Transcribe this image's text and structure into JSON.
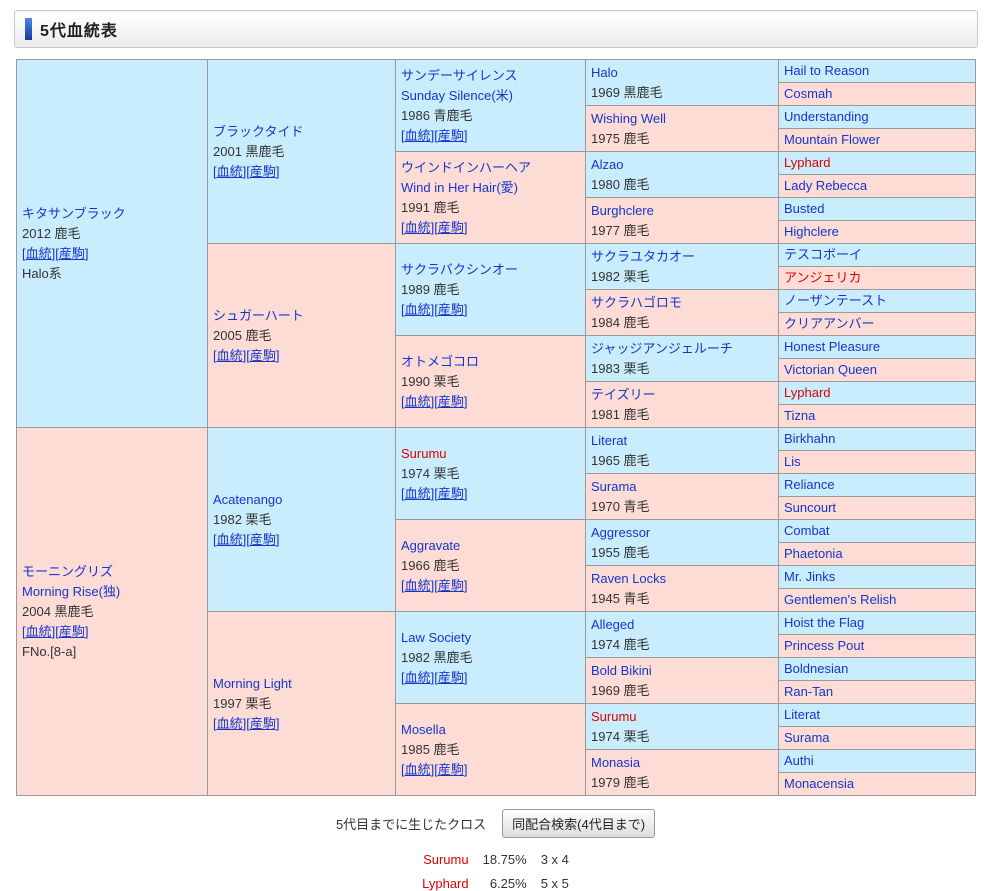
{
  "header": {
    "title": "5代血統表"
  },
  "links": {
    "blood": "血統",
    "offspring": "産駒"
  },
  "pedigree": {
    "gen1": [
      {
        "name": "キタサンブラック",
        "year_coat": "2012 鹿毛",
        "links": true,
        "extra": "Halo系",
        "sex": "m"
      },
      {
        "name": "モーニングリズ",
        "name_en": "Morning Rise(独)",
        "year_coat": "2004 黒鹿毛",
        "links": true,
        "extra": "FNo.[8-a]",
        "sex": "f"
      }
    ],
    "gen2": [
      {
        "name": "ブラックタイド",
        "year_coat": "2001 黒鹿毛",
        "links": true,
        "sex": "m"
      },
      {
        "name": "シュガーハート",
        "year_coat": "2005 鹿毛",
        "links": true,
        "sex": "f"
      },
      {
        "name": "Acatenango",
        "year_coat": "1982 栗毛",
        "links": true,
        "sex": "m"
      },
      {
        "name": "Morning Light",
        "year_coat": "1997 栗毛",
        "links": true,
        "sex": "f"
      }
    ],
    "gen3": [
      {
        "name": "サンデーサイレンス",
        "name_en": "Sunday Silence(米)",
        "year_coat": "1986 青鹿毛",
        "links": true,
        "sex": "m"
      },
      {
        "name": "ウインドインハーヘア",
        "name_en": "Wind in Her Hair(愛)",
        "year_coat": "1991 鹿毛",
        "links": true,
        "sex": "f"
      },
      {
        "name": "サクラバクシンオー",
        "year_coat": "1989 鹿毛",
        "links": true,
        "sex": "m"
      },
      {
        "name": "オトメゴコロ",
        "year_coat": "1990 栗毛",
        "links": true,
        "sex": "f"
      },
      {
        "name": "Surumu",
        "year_coat": "1974 栗毛",
        "links": true,
        "sex": "m",
        "red": true
      },
      {
        "name": "Aggravate",
        "year_coat": "1966 鹿毛",
        "links": true,
        "sex": "f"
      },
      {
        "name": "Law Society",
        "year_coat": "1982 黒鹿毛",
        "links": true,
        "sex": "m"
      },
      {
        "name": "Mosella",
        "year_coat": "1985 鹿毛",
        "links": true,
        "sex": "f"
      }
    ],
    "gen4": [
      {
        "name": "Halo",
        "year_coat": "1969 黒鹿毛",
        "sex": "m"
      },
      {
        "name": "Wishing Well",
        "year_coat": "1975 鹿毛",
        "sex": "f"
      },
      {
        "name": "Alzao",
        "year_coat": "1980 鹿毛",
        "sex": "m"
      },
      {
        "name": "Burghclere",
        "year_coat": "1977 鹿毛",
        "sex": "f"
      },
      {
        "name": "サクラユタカオー",
        "year_coat": "1982 栗毛",
        "sex": "m"
      },
      {
        "name": "サクラハゴロモ",
        "year_coat": "1984 鹿毛",
        "sex": "f"
      },
      {
        "name": "ジャッジアンジェルーチ",
        "year_coat": "1983 栗毛",
        "sex": "m"
      },
      {
        "name": "テイズリー",
        "year_coat": "1981 鹿毛",
        "sex": "f"
      },
      {
        "name": "Literat",
        "year_coat": "1965 鹿毛",
        "sex": "m"
      },
      {
        "name": "Surama",
        "year_coat": "1970 青毛",
        "sex": "f"
      },
      {
        "name": "Aggressor",
        "year_coat": "1955 鹿毛",
        "sex": "m"
      },
      {
        "name": "Raven Locks",
        "year_coat": "1945 青毛",
        "sex": "f"
      },
      {
        "name": "Alleged",
        "year_coat": "1974 鹿毛",
        "sex": "m"
      },
      {
        "name": "Bold Bikini",
        "year_coat": "1969 鹿毛",
        "sex": "f"
      },
      {
        "name": "Surumu",
        "year_coat": "1974 栗毛",
        "sex": "m",
        "red": true
      },
      {
        "name": "Monasia",
        "year_coat": "1979 鹿毛",
        "sex": "f"
      }
    ],
    "gen5": [
      {
        "name": "Hail to Reason",
        "sex": "m"
      },
      {
        "name": "Cosmah",
        "sex": "f"
      },
      {
        "name": "Understanding",
        "sex": "m"
      },
      {
        "name": "Mountain Flower",
        "sex": "f"
      },
      {
        "name": "Lyphard",
        "sex": "m",
        "red": true
      },
      {
        "name": "Lady Rebecca",
        "sex": "f"
      },
      {
        "name": "Busted",
        "sex": "m"
      },
      {
        "name": "Highclere",
        "sex": "f"
      },
      {
        "name": "テスコボーイ",
        "sex": "m"
      },
      {
        "name": "アンジェリカ",
        "sex": "f",
        "red": true
      },
      {
        "name": "ノーザンテースト",
        "sex": "m"
      },
      {
        "name": "クリアアンバー",
        "sex": "f"
      },
      {
        "name": "Honest Pleasure",
        "sex": "m"
      },
      {
        "name": "Victorian Queen",
        "sex": "f"
      },
      {
        "name": "Lyphard",
        "sex": "m",
        "red": true
      },
      {
        "name": "Tizna",
        "sex": "f"
      },
      {
        "name": "Birkhahn",
        "sex": "m"
      },
      {
        "name": "Lis",
        "sex": "f"
      },
      {
        "name": "Reliance",
        "sex": "m"
      },
      {
        "name": "Suncourt",
        "sex": "f"
      },
      {
        "name": "Combat",
        "sex": "m"
      },
      {
        "name": "Phaetonia",
        "sex": "f"
      },
      {
        "name": "Mr. Jinks",
        "sex": "m"
      },
      {
        "name": "Gentlemen's Relish",
        "sex": "f"
      },
      {
        "name": "Hoist the Flag",
        "sex": "m"
      },
      {
        "name": "Princess Pout",
        "sex": "f"
      },
      {
        "name": "Boldnesian",
        "sex": "m"
      },
      {
        "name": "Ran-Tan",
        "sex": "f"
      },
      {
        "name": "Literat",
        "sex": "m"
      },
      {
        "name": "Surama",
        "sex": "f"
      },
      {
        "name": "Authi",
        "sex": "m"
      },
      {
        "name": "Monacensia",
        "sex": "f"
      }
    ]
  },
  "footer": {
    "cross_label": "5代目までに生じたクロス",
    "search_button_label": "同配合検索(4代目まで)",
    "crosses": [
      {
        "name": "Surumu",
        "percent": "18.75%",
        "cross": "3 x 4"
      },
      {
        "name": "Lyphard",
        "percent": "6.25%",
        "cross": "5 x 5"
      }
    ]
  },
  "colors": {
    "male_bg": "#c9edfc",
    "female_bg": "#fddcd6",
    "link_blue": "#1535cc",
    "cross_red": "#dd0000",
    "cell_border": "#9a9a9a",
    "accent_bar": "#123a9e"
  }
}
